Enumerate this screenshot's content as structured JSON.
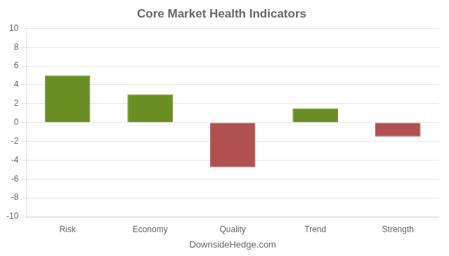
{
  "chart_data": {
    "type": "bar",
    "title": "Core Market Health Indicators",
    "categories": [
      "Risk",
      "Economy",
      "Quality",
      "Trend",
      "Strength"
    ],
    "values": [
      5.0,
      3.0,
      -4.75,
      1.5,
      -1.5
    ],
    "colors": [
      "#6b8e23",
      "#6b8e23",
      "#b05050",
      "#6b8e23",
      "#b05050"
    ],
    "xlabel": "DownsideHedge.com",
    "ylim": [
      -10,
      10
    ],
    "yticks": [
      -10,
      -8,
      -6,
      -4,
      -2,
      0,
      2,
      4,
      6,
      8,
      10
    ],
    "grid": true
  }
}
